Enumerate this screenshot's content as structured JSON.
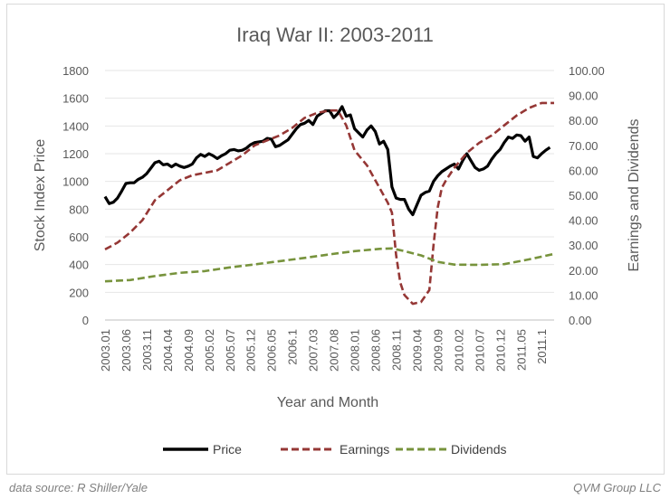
{
  "chart_data": {
    "type": "line",
    "title": "Iraq War II: 2003-2011",
    "xlabel": "Year and Month",
    "ylabel_left": "Stock Index Price",
    "ylabel_right": "Earnings and Dividends",
    "ylim_left": [
      0,
      1800
    ],
    "ylim_right": [
      0,
      100
    ],
    "left_ticks": [
      "0",
      "200",
      "400",
      "600",
      "800",
      "1000",
      "1200",
      "1400",
      "1600",
      "1800"
    ],
    "right_ticks": [
      "0.00",
      "10.00",
      "20.00",
      "30.00",
      "40.00",
      "50.00",
      "60.00",
      "70.00",
      "80.00",
      "90.00",
      "100.00"
    ],
    "x_tick_labels": [
      "2003.01",
      "2003.06",
      "2003.11",
      "2004.04",
      "2004.09",
      "2005.02",
      "2005.07",
      "2005.12",
      "2006.05",
      "2006.1",
      "2007.03",
      "2007.08",
      "2008.01",
      "2008.06",
      "2008.11",
      "2009.04",
      "2009.09",
      "2010.02",
      "2010.07",
      "2010.12",
      "2011.05",
      "2011.1"
    ],
    "x_start": "2003.01",
    "x_end": "2011.12",
    "legend_position": "bottom",
    "grid": "horizontal",
    "series": [
      {
        "name": "Price",
        "axis": "left",
        "color": "#000000",
        "style": "solid",
        "points": [
          [
            0,
            890
          ],
          [
            1,
            840
          ],
          [
            2,
            850
          ],
          [
            3,
            880
          ],
          [
            4,
            930
          ],
          [
            5,
            985
          ],
          [
            6,
            990
          ],
          [
            7,
            990
          ],
          [
            8,
            1015
          ],
          [
            9,
            1030
          ],
          [
            10,
            1055
          ],
          [
            11,
            1095
          ],
          [
            12,
            1135
          ],
          [
            13,
            1145
          ],
          [
            14,
            1120
          ],
          [
            15,
            1125
          ],
          [
            16,
            1105
          ],
          [
            17,
            1125
          ],
          [
            18,
            1110
          ],
          [
            19,
            1100
          ],
          [
            20,
            1110
          ],
          [
            21,
            1125
          ],
          [
            22,
            1170
          ],
          [
            23,
            1195
          ],
          [
            24,
            1180
          ],
          [
            25,
            1200
          ],
          [
            26,
            1185
          ],
          [
            27,
            1165
          ],
          [
            28,
            1185
          ],
          [
            29,
            1200
          ],
          [
            30,
            1225
          ],
          [
            31,
            1230
          ],
          [
            32,
            1220
          ],
          [
            33,
            1225
          ],
          [
            34,
            1240
          ],
          [
            35,
            1265
          ],
          [
            36,
            1280
          ],
          [
            37,
            1285
          ],
          [
            38,
            1290
          ],
          [
            39,
            1310
          ],
          [
            40,
            1305
          ],
          [
            41,
            1250
          ],
          [
            42,
            1260
          ],
          [
            43,
            1280
          ],
          [
            44,
            1300
          ],
          [
            45,
            1340
          ],
          [
            46,
            1380
          ],
          [
            47,
            1410
          ],
          [
            48,
            1420
          ],
          [
            49,
            1440
          ],
          [
            50,
            1410
          ],
          [
            51,
            1470
          ],
          [
            52,
            1490
          ],
          [
            53,
            1510
          ],
          [
            54,
            1510
          ],
          [
            55,
            1460
          ],
          [
            56,
            1490
          ],
          [
            57,
            1540
          ],
          [
            58,
            1470
          ],
          [
            59,
            1480
          ],
          [
            60,
            1380
          ],
          [
            61,
            1350
          ],
          [
            62,
            1320
          ],
          [
            63,
            1370
          ],
          [
            64,
            1400
          ],
          [
            65,
            1360
          ],
          [
            66,
            1270
          ],
          [
            67,
            1290
          ],
          [
            68,
            1230
          ],
          [
            69,
            960
          ],
          [
            70,
            880
          ],
          [
            71,
            870
          ],
          [
            72,
            870
          ],
          [
            73,
            800
          ],
          [
            74,
            760
          ],
          [
            75,
            830
          ],
          [
            76,
            900
          ],
          [
            77,
            920
          ],
          [
            78,
            930
          ],
          [
            79,
            1000
          ],
          [
            80,
            1040
          ],
          [
            81,
            1070
          ],
          [
            82,
            1090
          ],
          [
            83,
            1110
          ],
          [
            84,
            1125
          ],
          [
            85,
            1090
          ],
          [
            86,
            1150
          ],
          [
            87,
            1200
          ],
          [
            88,
            1150
          ],
          [
            89,
            1100
          ],
          [
            90,
            1080
          ],
          [
            91,
            1090
          ],
          [
            92,
            1110
          ],
          [
            93,
            1160
          ],
          [
            94,
            1200
          ],
          [
            95,
            1230
          ],
          [
            96,
            1280
          ],
          [
            97,
            1320
          ],
          [
            98,
            1310
          ],
          [
            99,
            1335
          ],
          [
            100,
            1330
          ],
          [
            101,
            1290
          ],
          [
            102,
            1320
          ],
          [
            103,
            1180
          ],
          [
            104,
            1170
          ],
          [
            105,
            1200
          ],
          [
            106,
            1225
          ],
          [
            107,
            1245
          ]
        ]
      },
      {
        "name": "Earnings",
        "axis": "right",
        "color": "#953735",
        "style": "dashed",
        "points": [
          [
            0,
            28.3
          ],
          [
            3,
            31
          ],
          [
            6,
            35
          ],
          [
            9,
            40
          ],
          [
            12,
            48
          ],
          [
            15,
            52
          ],
          [
            18,
            56
          ],
          [
            21,
            58
          ],
          [
            24,
            59
          ],
          [
            27,
            60
          ],
          [
            30,
            63
          ],
          [
            33,
            66
          ],
          [
            36,
            70
          ],
          [
            39,
            72
          ],
          [
            42,
            74
          ],
          [
            45,
            77
          ],
          [
            48,
            81
          ],
          [
            51,
            83
          ],
          [
            54,
            84
          ],
          [
            56,
            84
          ],
          [
            58,
            78
          ],
          [
            60,
            68
          ],
          [
            63,
            62
          ],
          [
            66,
            53
          ],
          [
            68,
            47
          ],
          [
            69,
            43
          ],
          [
            70,
            26
          ],
          [
            71,
            15
          ],
          [
            72,
            10
          ],
          [
            74,
            6.5
          ],
          [
            76,
            7.2
          ],
          [
            78,
            12
          ],
          [
            79,
            30
          ],
          [
            80,
            45
          ],
          [
            81,
            53
          ],
          [
            82,
            56
          ],
          [
            84,
            61
          ],
          [
            87,
            67
          ],
          [
            90,
            71
          ],
          [
            93,
            74
          ],
          [
            96,
            78
          ],
          [
            99,
            82
          ],
          [
            102,
            85
          ],
          [
            105,
            87
          ],
          [
            108,
            87
          ]
        ]
      },
      {
        "name": "Dividends",
        "axis": "right",
        "color": "#77933c",
        "style": "dashed",
        "points": [
          [
            0,
            15.5
          ],
          [
            6,
            16
          ],
          [
            12,
            17.6
          ],
          [
            18,
            18.9
          ],
          [
            24,
            19.6
          ],
          [
            30,
            21.1
          ],
          [
            36,
            22.3
          ],
          [
            42,
            23.6
          ],
          [
            48,
            24.9
          ],
          [
            54,
            26.3
          ],
          [
            60,
            27.6
          ],
          [
            66,
            28.5
          ],
          [
            69,
            28.7
          ],
          [
            72,
            27.6
          ],
          [
            76,
            25.9
          ],
          [
            80,
            23.3
          ],
          [
            84,
            22.2
          ],
          [
            90,
            22.1
          ],
          [
            96,
            22.4
          ],
          [
            102,
            24.3
          ],
          [
            108,
            26.5
          ]
        ]
      }
    ]
  },
  "footer": {
    "source": "data source: R Shiller/Yale",
    "credit": "QVM Group LLC"
  }
}
